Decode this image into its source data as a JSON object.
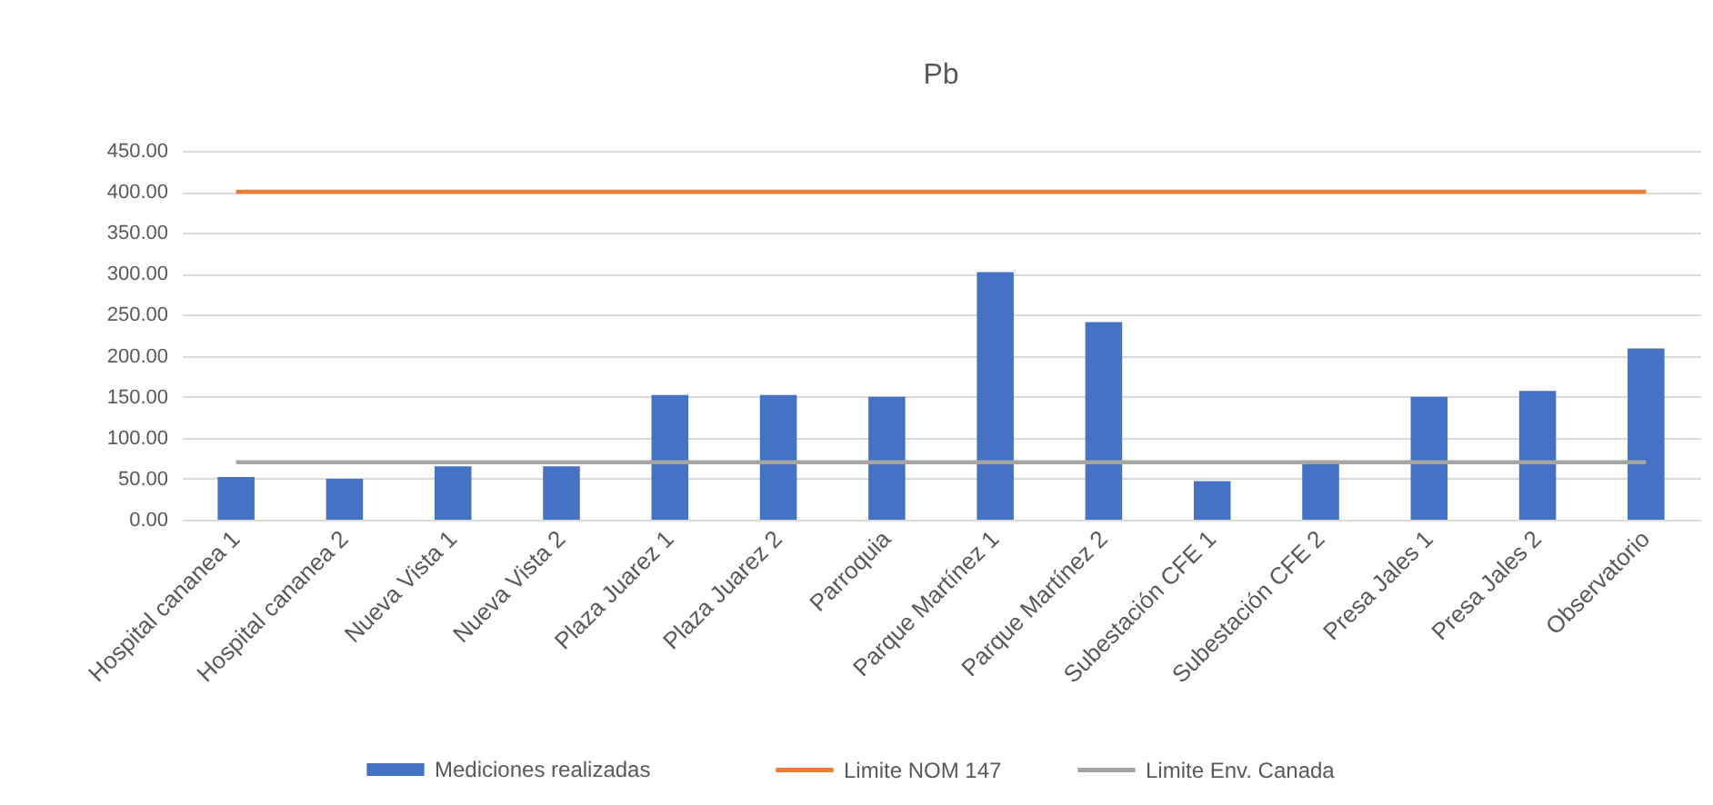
{
  "chart_data": {
    "type": "bar",
    "title": "Pb",
    "categories": [
      "Hospital cananea 1",
      "Hospital cananea 2",
      "Nueva Vista 1",
      "Nueva Vista 2",
      "Plaza Juarez 1",
      "Plaza Juarez 2",
      "Parroquia",
      "Parque Martínez 1",
      "Parque Martínez 2",
      "Subestación CFE 1",
      "Subestación CFE 2",
      "Presa Jales 1",
      "Presa Jales 2",
      "Observatorio"
    ],
    "series": [
      {
        "name": "Mediciones realizadas",
        "color": "#4472c4",
        "values": [
          52,
          50,
          65,
          65,
          152,
          152,
          150,
          302,
          241,
          47,
          68,
          150,
          157,
          209
        ]
      },
      {
        "name": "Limite NOM 147",
        "type": "line",
        "color": "#ed7d31",
        "values": [
          400,
          400,
          400,
          400,
          400,
          400,
          400,
          400,
          400,
          400,
          400,
          400,
          400,
          400
        ]
      },
      {
        "name": "Limite Env. Canada",
        "type": "line",
        "color": "#a5a5a5",
        "values": [
          70,
          70,
          70,
          70,
          70,
          70,
          70,
          70,
          70,
          70,
          70,
          70,
          70,
          70
        ]
      }
    ],
    "ylim": [
      0,
      450
    ],
    "yticks": [
      {
        "value": 0,
        "label": "0.00"
      },
      {
        "value": 50,
        "label": "50.00"
      },
      {
        "value": 100,
        "label": "100.00"
      },
      {
        "value": 150,
        "label": "150.00"
      },
      {
        "value": 200,
        "label": "200.00"
      },
      {
        "value": 250,
        "label": "250.00"
      },
      {
        "value": 300,
        "label": "300.00"
      },
      {
        "value": 350,
        "label": "350.00"
      },
      {
        "value": 400,
        "label": "400.00"
      },
      {
        "value": 450,
        "label": "450.00"
      }
    ],
    "grid": "y",
    "legend": "bottom"
  }
}
